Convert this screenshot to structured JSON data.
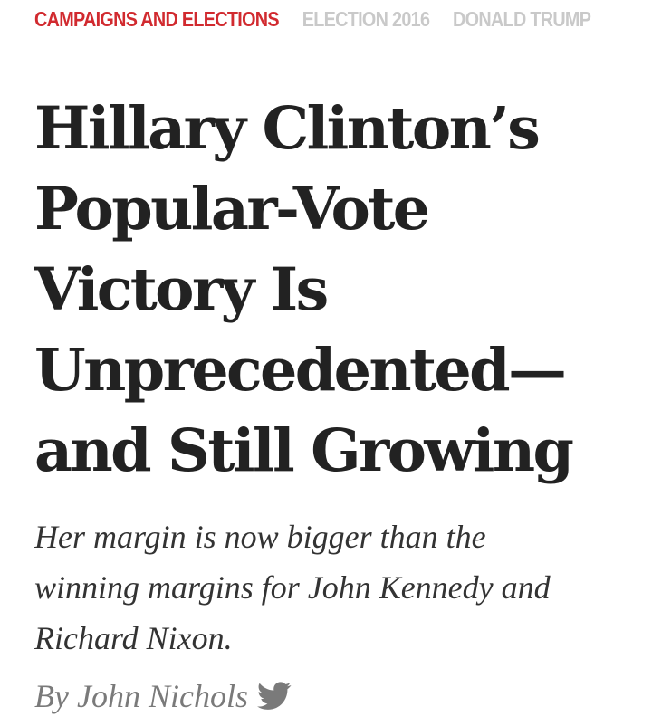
{
  "tags": [
    {
      "label": "CAMPAIGNS AND ELECTIONS"
    },
    {
      "label": "ELECTION 2016"
    },
    {
      "label": "DONALD TRUMP"
    }
  ],
  "headline": {
    "line1": "Hillary Clinton’s",
    "line2": "Popular-Vote",
    "line3": "Victory Is",
    "line4": "Unprecedented—",
    "line5": "and Still Growing"
  },
  "subhead": {
    "line1": "Her margin is now bigger than the",
    "line2": "winning margins for John Kennedy and",
    "line3": "Richard Nixon."
  },
  "byline": {
    "prefix": "By",
    "author": "John Nichols",
    "icon": "twitter-icon"
  },
  "colors": {
    "tag_primary": "#d12a2f",
    "tag_secondary": "#c9c9c9",
    "headline": "#222222",
    "byline": "#7a7a7a",
    "twitter_icon": "#7a7a7a"
  }
}
